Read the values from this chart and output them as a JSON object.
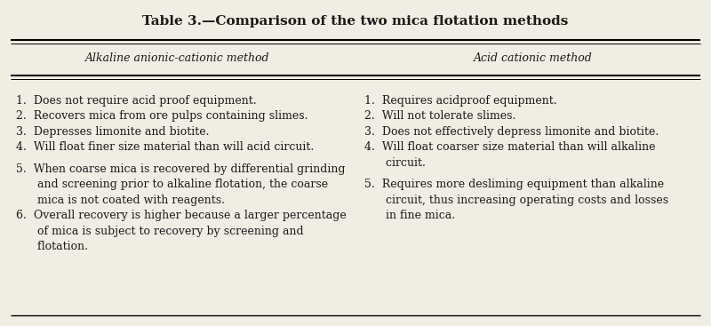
{
  "title": "Table 3.—Comparison of the two mica flotation methods",
  "col1_header": "Alkaline anionic-cationic method",
  "col2_header": "Acid cationic method",
  "bg_color": "#f0ede4",
  "text_color": "#1a1a1a",
  "title_fontsize": 11.0,
  "header_fontsize": 9.0,
  "body_fontsize": 9.0,
  "col1_lines": [
    "1.  Does not require acid proof equipment.",
    "2.  Recovers mica from ore pulps containing slimes.",
    "3.  Depresses limonite and biotite.",
    "4.  Will float finer size material than will acid circuit.",
    "",
    "5.  When coarse mica is recovered by differential grinding",
    "      and screening prior to alkaline flotation, the coarse",
    "      mica is not coated with reagents.",
    "6.  Overall recovery is higher because a larger percentage",
    "      of mica is subject to recovery by screening and",
    "      flotation."
  ],
  "col2_lines": [
    "1.  Requires acidproof equipment.",
    "2.  Will not tolerate slimes.",
    "3.  Does not effectively depress limonite and biotite.",
    "4.  Will float coarser size material than will alkaline",
    "      circuit.",
    "",
    "5.  Requires more desliming equipment than alkaline",
    "      circuit, thus increasing operating costs and losses",
    "      in fine mica."
  ]
}
